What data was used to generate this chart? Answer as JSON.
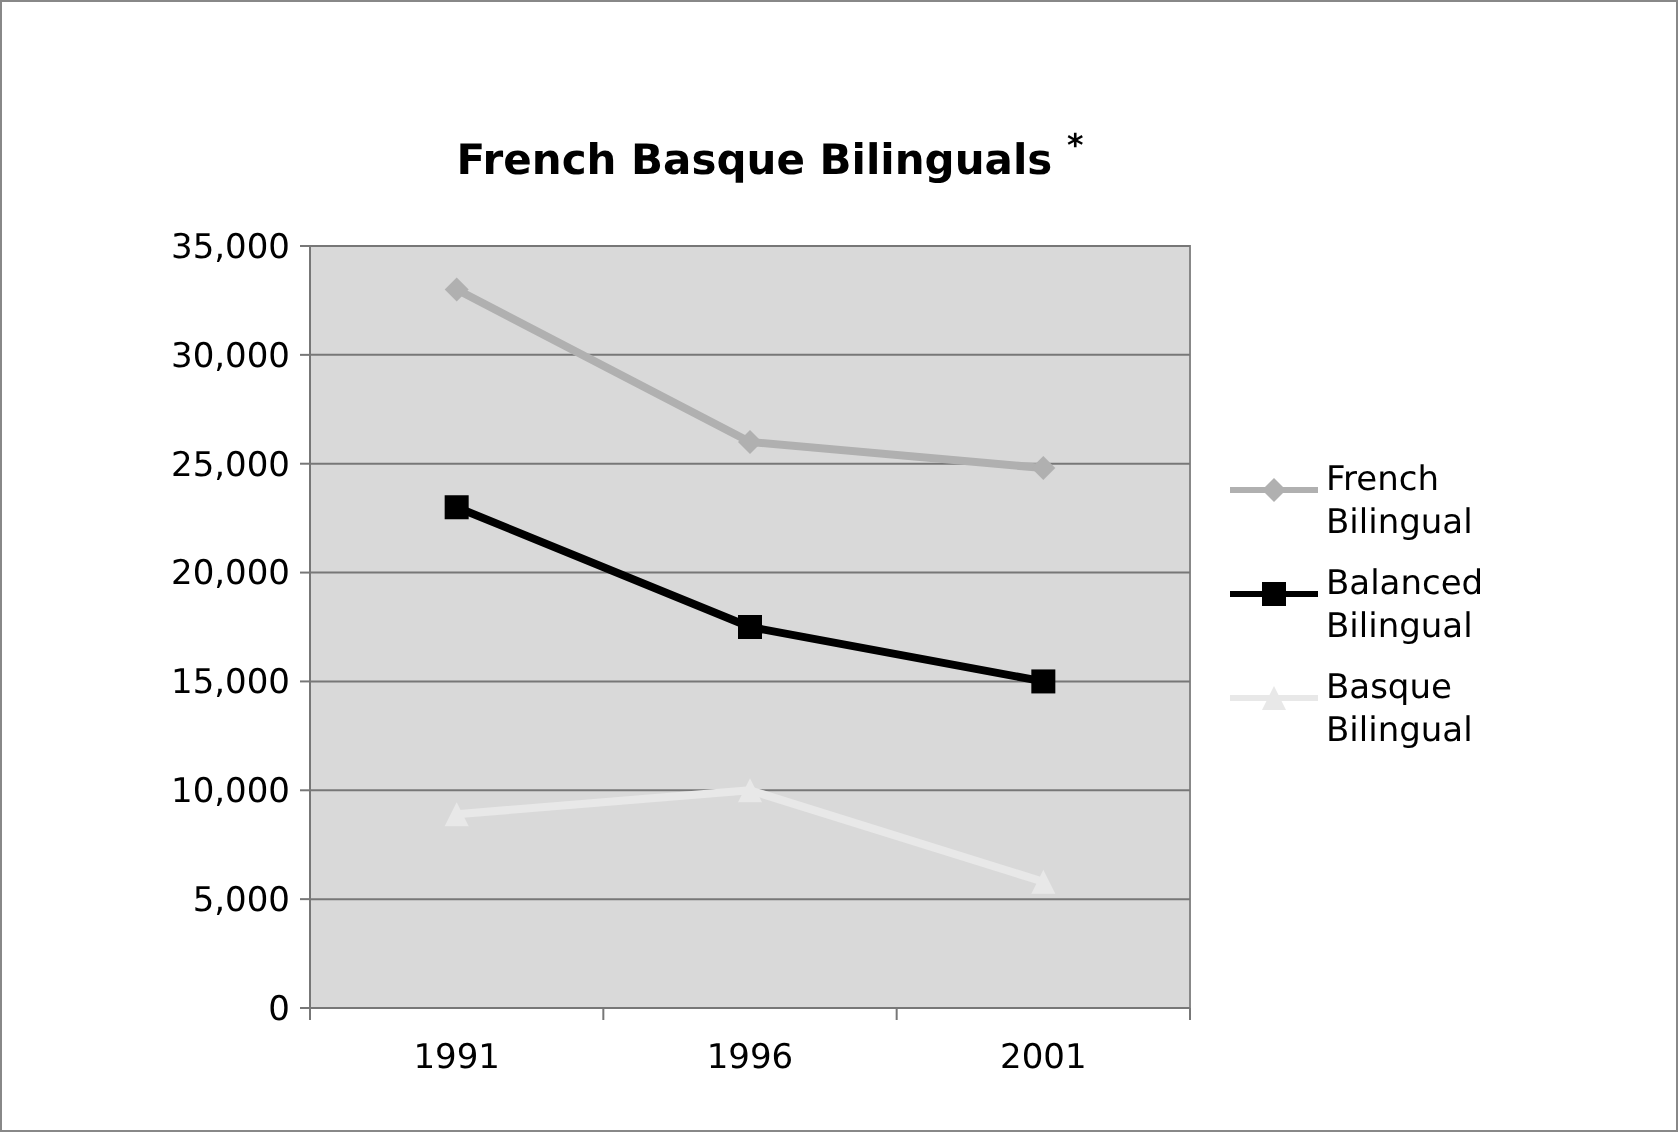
{
  "chart_data": {
    "type": "line",
    "title": "French Basque Bilinguals $^{*}$",
    "categories": [
      "1991",
      "1996",
      "2001"
    ],
    "series": [
      {
        "name": "French Bilingual",
        "color": "#b0b0b0",
        "marker": "diamond",
        "values": [
          33000,
          26000,
          24800
        ]
      },
      {
        "name": "Balanced Bilingual",
        "color": "#000000",
        "marker": "square",
        "values": [
          23000,
          17500,
          15000
        ]
      },
      {
        "name": "Basque Bilingual",
        "color": "#e8e8e8",
        "marker": "triangle",
        "values": [
          8900,
          10000,
          5800
        ]
      }
    ],
    "ylim": [
      0,
      35000
    ],
    "yticks": [
      {
        "value": 0,
        "label": "0"
      },
      {
        "value": 5000,
        "label": "5,000"
      },
      {
        "value": 10000,
        "label": "10,000"
      },
      {
        "value": 15000,
        "label": "15,000"
      },
      {
        "value": 20000,
        "label": "20,000"
      },
      {
        "value": 25000,
        "label": "25,000"
      },
      {
        "value": 30000,
        "label": "30,000"
      },
      {
        "value": 35000,
        "label": "35,000"
      }
    ],
    "grid": "y",
    "legend": "right"
  }
}
